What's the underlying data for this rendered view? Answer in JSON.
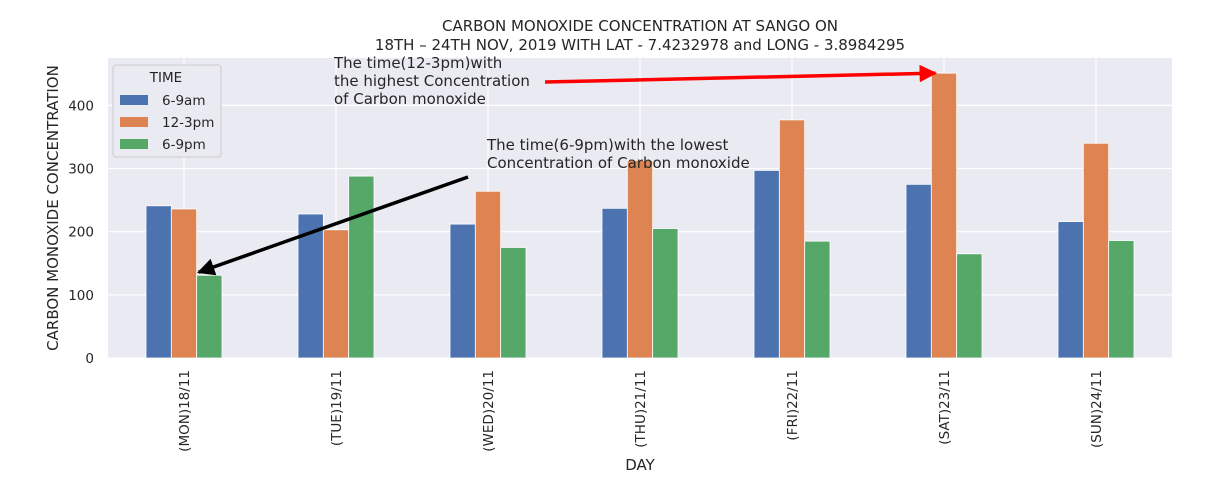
{
  "chart_data": {
    "type": "bar",
    "title_line1": "CARBON MONOXIDE CONCENTRATION AT SANGO ON",
    "title_line2": "18TH – 24TH NOV, 2019 WITH LAT - 7.4232978 and LONG - 3.8984295",
    "xlabel": "DAY",
    "ylabel": "CARBON MONOXIDE CONCENTRATION",
    "categories": [
      "(MON)18/11",
      "(TUE)19/11",
      "(WED)20/11",
      "(THU)21/11",
      "(FRI)22/11",
      "(SAT)23/11",
      "(SUN)24/11"
    ],
    "series": [
      {
        "name": "6-9am",
        "color": "#4c72b0",
        "values": [
          241,
          228,
          212,
          237,
          297,
          275,
          216
        ]
      },
      {
        "name": "12-3pm",
        "color": "#dd8452",
        "values": [
          236,
          203,
          264,
          313,
          377,
          451,
          340
        ]
      },
      {
        "name": "6-9pm",
        "color": "#55a868",
        "values": [
          131,
          288,
          175,
          205,
          185,
          165,
          186
        ]
      }
    ],
    "ylim": [
      0,
      475
    ],
    "yticks": [
      0,
      100,
      200,
      300,
      400
    ],
    "grid": true,
    "legend": {
      "title": "TIME",
      "placement": "top-left"
    },
    "annotations": [
      {
        "lines": [
          "The time(12-3pm)with",
          " the highest Concentration",
          " of Carbon monoxide"
        ],
        "arrow_color": "#ff0000",
        "points_to": {
          "category": "(SAT)23/11",
          "series": "12-3pm"
        }
      },
      {
        "lines": [
          "The time(6-9pm)with the lowest",
          " Concentration of Carbon monoxide"
        ],
        "arrow_color": "#000000",
        "points_to": {
          "category": "(MON)18/11",
          "series": "6-9pm"
        }
      }
    ]
  }
}
